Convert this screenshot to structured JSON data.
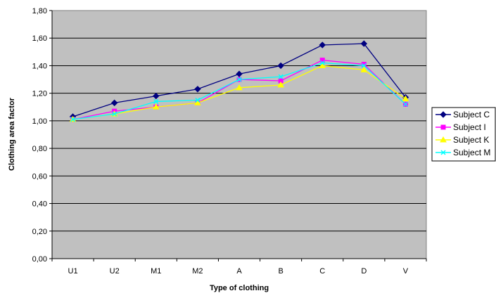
{
  "chart_data": {
    "type": "line",
    "title": "",
    "xlabel": "Type of clothing",
    "ylabel": "Clothing area factor",
    "categories": [
      "U1",
      "U2",
      "M1",
      "M2",
      "A",
      "B",
      "C",
      "D",
      "V"
    ],
    "ylim": [
      0,
      1.8
    ],
    "yticks": [
      "0,00",
      "0,20",
      "0,40",
      "0,60",
      "0,80",
      "1,00",
      "1,20",
      "1,40",
      "1,60",
      "1,80"
    ],
    "grid": true,
    "plot_background": "#c0c0c0",
    "legend_position": "right",
    "series": [
      {
        "name": "Subject C",
        "color": "#000080",
        "marker": "diamond",
        "values": [
          1.03,
          1.13,
          1.18,
          1.23,
          1.34,
          1.4,
          1.55,
          1.56,
          1.17
        ]
      },
      {
        "name": "Subject I",
        "color": "#ff00ff",
        "marker": "square",
        "values": [
          1.01,
          1.07,
          1.1,
          1.13,
          1.3,
          1.29,
          1.44,
          1.41,
          1.12
        ]
      },
      {
        "name": "Subject K",
        "color": "#ffff00",
        "marker": "triangle",
        "values": [
          1.01,
          1.05,
          1.1,
          1.13,
          1.24,
          1.26,
          1.4,
          1.37,
          1.16
        ]
      },
      {
        "name": "Subject M",
        "color": "#00ffff",
        "marker": "x",
        "values": [
          1.01,
          1.05,
          1.14,
          1.15,
          1.3,
          1.32,
          1.42,
          1.4,
          1.12
        ]
      }
    ]
  }
}
